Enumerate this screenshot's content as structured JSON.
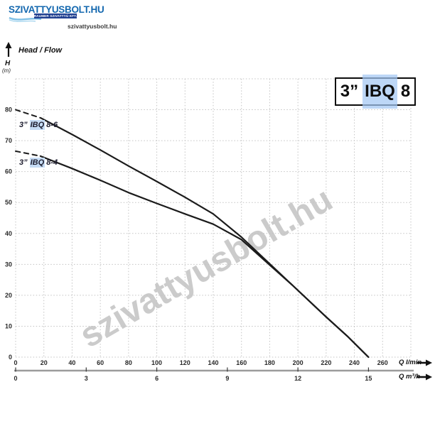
{
  "branding": {
    "logo_text": "SZIVATTYUSBOLT.HU",
    "logo_subtext": "RAUMER SZIVATTYÚ KFT.",
    "site_url": "szivattyusbolt.hu"
  },
  "axis_header": {
    "title": "Head / Flow",
    "y_symbol": "H",
    "y_unit": "(m)"
  },
  "title_box": {
    "prefix": "3”",
    "highlighted": "IBQ",
    "suffix": "8"
  },
  "watermark": "szivattyusbolt.hu",
  "colors": {
    "logo_blue": "#1468af",
    "logo_navy_bar": "#1d3d8f",
    "logo_wave": "#7fc0e6",
    "find_highlight": "#c6dcf5",
    "grid_gray": "#c3c3c3",
    "curve_black": "#1b1b1b",
    "secondary_axis_gray": "#9c9c9c",
    "watermark_gray": "#c3c3c3"
  },
  "chart_data": {
    "type": "line",
    "title": "3” IBQ 8",
    "xlabel": "Q l/min",
    "xlabel_secondary": "Q m³/h",
    "ylabel": "H (m)",
    "xlim_lmin": [
      0,
      280
    ],
    "ylim_m": [
      0,
      90
    ],
    "grid": "dotted",
    "x_axis_primary": {
      "label": "Q l/min",
      "ticks": [
        0,
        20,
        40,
        60,
        80,
        100,
        120,
        140,
        160,
        180,
        200,
        220,
        240,
        260
      ]
    },
    "x_axis_secondary": {
      "label": "Q m³/h",
      "ticks": [
        0,
        3,
        6,
        9,
        12,
        15
      ],
      "lmin_per_unit": 16.6667
    },
    "y_axis": {
      "label": "H (m)",
      "ticks": [
        0,
        10,
        20,
        30,
        40,
        50,
        60,
        70,
        80
      ]
    },
    "series": [
      {
        "name": "3” IBQ 8-6",
        "label_prefix": "3”",
        "label_highlight": "IBQ",
        "label_suffix": "8-6",
        "dash_end_lmin": 18,
        "points": [
          [
            0,
            80
          ],
          [
            18,
            77.3
          ],
          [
            40,
            72
          ],
          [
            60,
            67
          ],
          [
            80,
            61.8
          ],
          [
            100,
            56.8
          ],
          [
            120,
            51.7
          ],
          [
            140,
            46.3
          ],
          [
            160,
            38.8
          ],
          [
            180,
            30.2
          ],
          [
            196,
            23.3
          ],
          [
            220,
            13
          ],
          [
            235,
            6.8
          ],
          [
            250,
            0
          ]
        ]
      },
      {
        "name": "3” IBQ 8-4",
        "label_prefix": "3”",
        "label_highlight": "IBQ",
        "label_suffix": "8-4",
        "dash_end_lmin": 17.6,
        "points": [
          [
            0,
            66.6
          ],
          [
            17.6,
            65
          ],
          [
            40,
            61
          ],
          [
            60,
            57.2
          ],
          [
            80,
            53.2
          ],
          [
            100,
            49.7
          ],
          [
            120,
            46.3
          ],
          [
            140,
            43
          ],
          [
            160,
            38
          ],
          [
            180,
            29.8
          ],
          [
            196,
            23.3
          ],
          [
            220,
            13
          ],
          [
            235,
            6.8
          ],
          [
            250,
            0
          ]
        ]
      }
    ]
  }
}
